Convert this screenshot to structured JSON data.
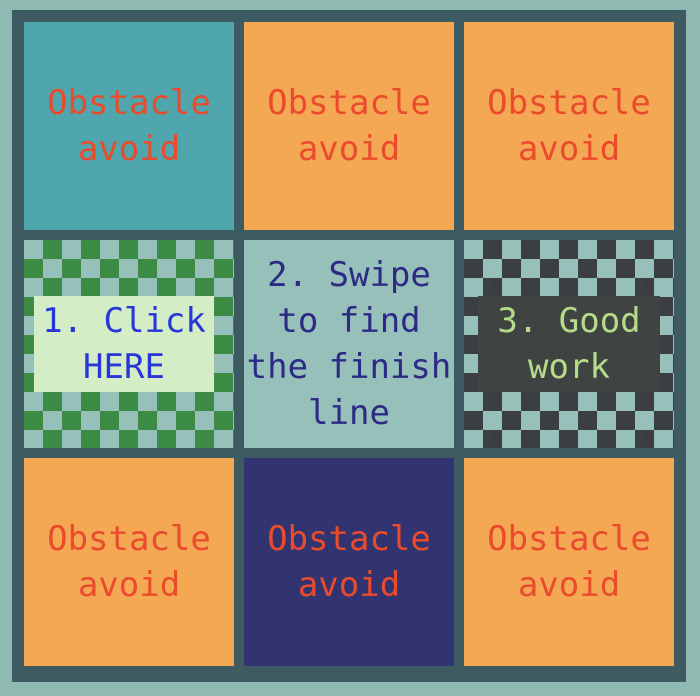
{
  "tiles": {
    "top_left": "Obstacle\navoid",
    "top_center": "Obstacle\navoid",
    "top_right": "Obstacle\navoid",
    "mid_left": "1. Click\nHERE",
    "mid_center": "2. Swipe\nto find\nthe finish\nline",
    "mid_right": "3. Good\nwork",
    "bottom_left": "Obstacle\navoid",
    "bottom_center": "Obstacle\navoid",
    "bottom_right": "Obstacle\navoid"
  },
  "colors": {
    "background": "#8fbab2",
    "grid": "#3e5b61",
    "obstacle_text": "#ea4b2c",
    "teal_tile": "#4fa7ad",
    "orange_tile": "#f5a853",
    "navy_tile": "#323371",
    "start_box": "#d4edc7",
    "start_text": "#2636d8",
    "finish_box": "#3f4443",
    "finish_text": "#b6db8a",
    "hint_text": "#2d2a86"
  }
}
